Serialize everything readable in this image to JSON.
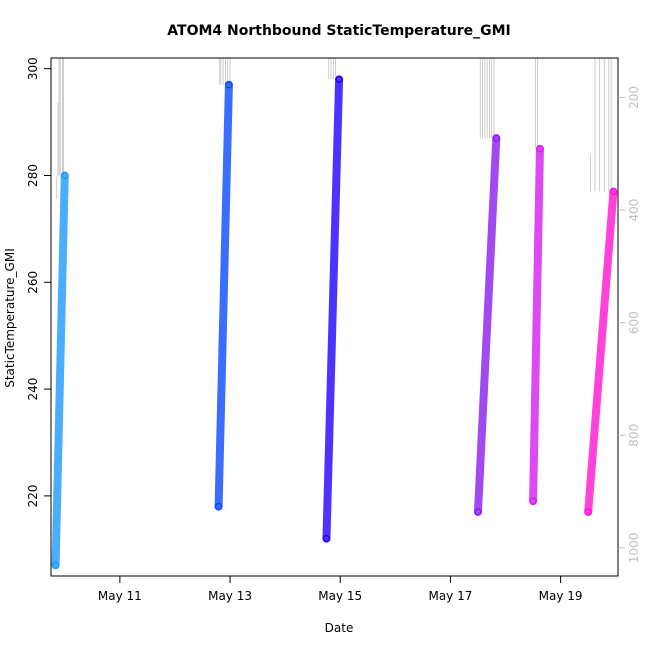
{
  "chart_data": {
    "type": "scatter",
    "title": "ATOM4 Northbound StaticTemperature_GMI",
    "xlabel": "Date",
    "ylabel": "StaticTemperature_GMI",
    "x_ticks": [
      "May 11",
      "May 13",
      "May 15",
      "May 17",
      "May 19"
    ],
    "y_ticks": [
      220,
      240,
      260,
      280,
      300
    ],
    "y2_ticks": [
      200,
      400,
      600,
      800,
      1000
    ],
    "xlim": [
      "2018-05-09T18:00",
      "2018-05-20T01:00"
    ],
    "ylim": [
      205,
      302
    ],
    "y2lim": [
      1050,
      130
    ],
    "grid": false,
    "secondary_axis": "pressure (grey, right, inverted)",
    "colors": {
      "series1": "#1E9BFF",
      "series2": "#0A4BFF",
      "series3": "#2200FF",
      "series4": "#8A1EF0",
      "series5": "#D41EF0",
      "series6": "#FF14D2",
      "pressure_line": "#c0c0c0"
    },
    "series": [
      {
        "x": [
          "2018-05-09T20:00",
          "2018-05-10T00:00"
        ],
        "y": [
          207,
          280
        ],
        "pressure_x": [
          "2018-05-09T20:30",
          "2018-05-09T21:00",
          "2018-05-09T21:30",
          "2018-05-09T22:00",
          "2018-05-09T23:00",
          "2018-05-09T23:30"
        ],
        "pressure_y": [
          380,
          210,
          130,
          130,
          130,
          130
        ]
      },
      {
        "x": [
          "2018-05-12T19:00",
          "2018-05-12T23:30"
        ],
        "y": [
          218,
          297
        ],
        "pressure_x": [
          "2018-05-12T19:30",
          "2018-05-12T20:00",
          "2018-05-12T21:00",
          "2018-05-12T22:00",
          "2018-05-12T23:00",
          "2018-05-13T00:00"
        ],
        "pressure_y": [
          130,
          130,
          130,
          130,
          130,
          130
        ]
      },
      {
        "x": [
          "2018-05-14T18:00",
          "2018-05-14T23:30"
        ],
        "y": [
          212,
          298
        ],
        "pressure_x": [
          "2018-05-14T19:00",
          "2018-05-14T20:00",
          "2018-05-14T21:00",
          "2018-05-14T22:00"
        ],
        "pressure_y": [
          130,
          130,
          130,
          130
        ]
      },
      {
        "x": [
          "2018-05-17T12:00",
          "2018-05-17T20:00"
        ],
        "y": [
          217,
          287
        ],
        "pressure_x": [
          "2018-05-17T13:00",
          "2018-05-17T14:00",
          "2018-05-17T15:00",
          "2018-05-17T16:00",
          "2018-05-17T17:00",
          "2018-05-17T18:00",
          "2018-05-17T19:00"
        ],
        "pressure_y": [
          130,
          130,
          130,
          130,
          130,
          130,
          130
        ]
      },
      {
        "x": [
          "2018-05-18T12:00",
          "2018-05-18T15:00"
        ],
        "y": [
          219,
          285
        ],
        "pressure_x": [
          "2018-05-18T13:00",
          "2018-05-18T14:00"
        ],
        "pressure_y": [
          130,
          130
        ]
      },
      {
        "x": [
          "2018-05-19T12:00",
          "2018-05-19T23:00"
        ],
        "y": [
          217,
          277
        ],
        "pressure_x": [
          "2018-05-19T13:00",
          "2018-05-19T15:00",
          "2018-05-19T17:00",
          "2018-05-19T19:00",
          "2018-05-19T21:00",
          "2018-05-19T22:00"
        ],
        "pressure_y": [
          300,
          130,
          130,
          130,
          130,
          130
        ]
      }
    ]
  }
}
